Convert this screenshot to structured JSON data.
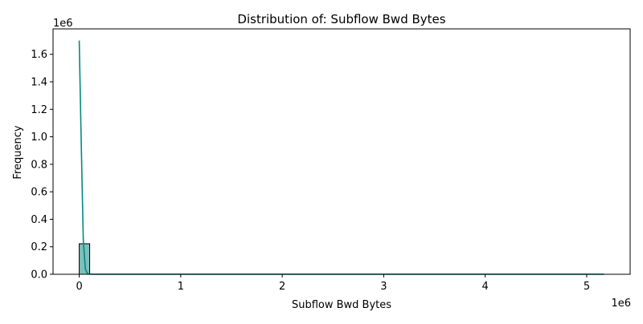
{
  "chart_data": {
    "type": "bar",
    "title": "Distribution of: Subflow Bwd Bytes",
    "xlabel": "Subflow Bwd Bytes",
    "ylabel": "Frequency",
    "x_multiplier_label": "1e6",
    "y_multiplier_label": "1e6",
    "xlim": [
      -0.258,
      5.428
    ],
    "ylim": [
      0,
      1.785
    ],
    "x_ticks": [
      0,
      1,
      2,
      3,
      4,
      5
    ],
    "x_tick_labels": [
      "0",
      "1",
      "2",
      "3",
      "4",
      "5"
    ],
    "y_ticks": [
      0.0,
      0.2,
      0.4,
      0.6,
      0.8,
      1.0,
      1.2,
      1.4,
      1.6
    ],
    "y_tick_labels": [
      "0.0",
      "0.2",
      "0.4",
      "0.6",
      "0.8",
      "1.0",
      "1.2",
      "1.4",
      "1.6"
    ],
    "grid": false,
    "histogram": {
      "bins": [
        {
          "x0": 0.0,
          "x1": 0.103,
          "count": 0.222
        }
      ]
    },
    "kde_line": {
      "x": [
        0.0,
        0.02,
        0.04,
        0.06,
        0.08,
        0.1,
        0.15,
        0.2,
        0.5,
        1,
        2,
        3,
        4,
        5,
        5.17
      ],
      "y": [
        1.7,
        0.95,
        0.25,
        0.04,
        0.006,
        0.001,
        0.0003,
        0.0002,
        0.0001,
        0.0001,
        0.0001,
        0.0001,
        0.0001,
        0.0001,
        0.0001
      ]
    },
    "colors": {
      "bar_fill": "#7fbfbb",
      "bar_edge": "#000000",
      "line": "#008b80",
      "axis": "#000000"
    }
  }
}
